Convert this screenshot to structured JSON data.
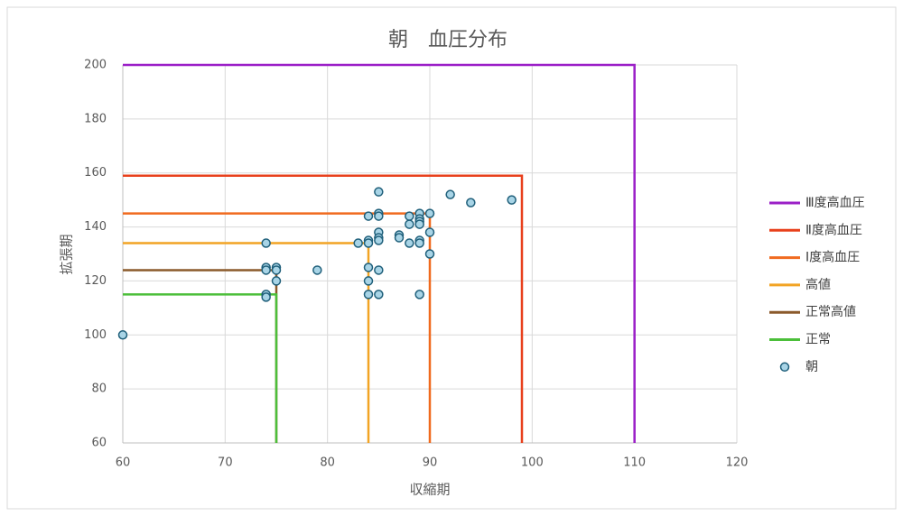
{
  "chart_data": {
    "type": "scatter",
    "title": "朝　血圧分布",
    "x_label": "収縮期",
    "y_label": "拡張期",
    "xlim": [
      60,
      120
    ],
    "xticks": [
      60,
      70,
      80,
      90,
      100,
      110,
      120
    ],
    "ylim": [
      60,
      200
    ],
    "yticks": [
      60,
      80,
      100,
      120,
      140,
      160,
      180,
      200
    ],
    "grid": true,
    "legend": "right",
    "series": [
      {
        "name": "Ⅲ度高血圧",
        "color": "#9b1fc7",
        "line": true,
        "x": [
          60,
          110,
          110
        ],
        "values": [
          200,
          200,
          60
        ]
      },
      {
        "name": "Ⅱ度高血圧",
        "color": "#e8401c",
        "line": true,
        "x": [
          60,
          99,
          99
        ],
        "values": [
          159,
          159,
          60
        ]
      },
      {
        "name": "Ⅰ度高血圧",
        "color": "#f06a1e",
        "line": true,
        "x": [
          60,
          90,
          90
        ],
        "values": [
          145,
          145,
          60
        ]
      },
      {
        "name": "高値",
        "color": "#f2a424",
        "line": true,
        "x": [
          60,
          84,
          84
        ],
        "values": [
          134,
          134,
          60
        ]
      },
      {
        "name": "正常高値",
        "color": "#8b5a2b",
        "line": true,
        "x": [
          60,
          75,
          75
        ],
        "values": [
          124,
          124,
          60
        ]
      },
      {
        "name": "正常",
        "color": "#4cbf3a",
        "line": true,
        "x": [
          60,
          75,
          75
        ],
        "values": [
          115,
          115,
          60
        ]
      },
      {
        "name": "朝",
        "color": "#a8d4e6",
        "marker": true,
        "x": [
          60,
          74,
          74,
          74,
          74,
          74,
          75,
          75,
          75,
          79,
          83,
          84,
          84,
          84,
          84,
          84,
          84,
          85,
          85,
          85,
          85,
          85,
          85,
          85,
          85,
          87,
          87,
          88,
          88,
          88,
          89,
          89,
          89,
          89,
          89,
          89,
          89,
          90,
          90,
          90,
          92,
          94,
          98
        ],
        "values": [
          100,
          134,
          125,
          124,
          115,
          114,
          125,
          124,
          120,
          124,
          134,
          144,
          135,
          134,
          125,
          120,
          115,
          153,
          145,
          144,
          138,
          136,
          135,
          124,
          115,
          137,
          136,
          144,
          141,
          134,
          145,
          143,
          142,
          141,
          135,
          134,
          115,
          145,
          138,
          130,
          152,
          149,
          150
        ]
      }
    ]
  }
}
